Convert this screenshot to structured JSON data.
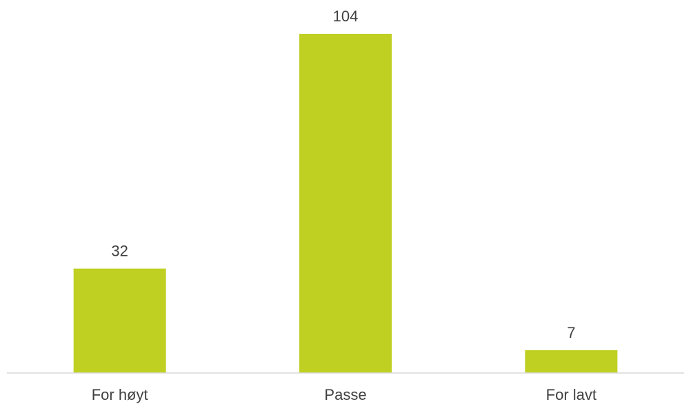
{
  "chart_data": {
    "type": "bar",
    "categories": [
      "For høyt",
      "Passe",
      "For lavt"
    ],
    "values": [
      32,
      104,
      7
    ],
    "title": "",
    "xlabel": "",
    "ylabel": "",
    "ylim": [
      0,
      104
    ],
    "grid": false,
    "legend": "none",
    "data_labels": true,
    "bar_color": "#bfd022",
    "axis_color": "#d9d9d9",
    "text_color": "#404040"
  }
}
